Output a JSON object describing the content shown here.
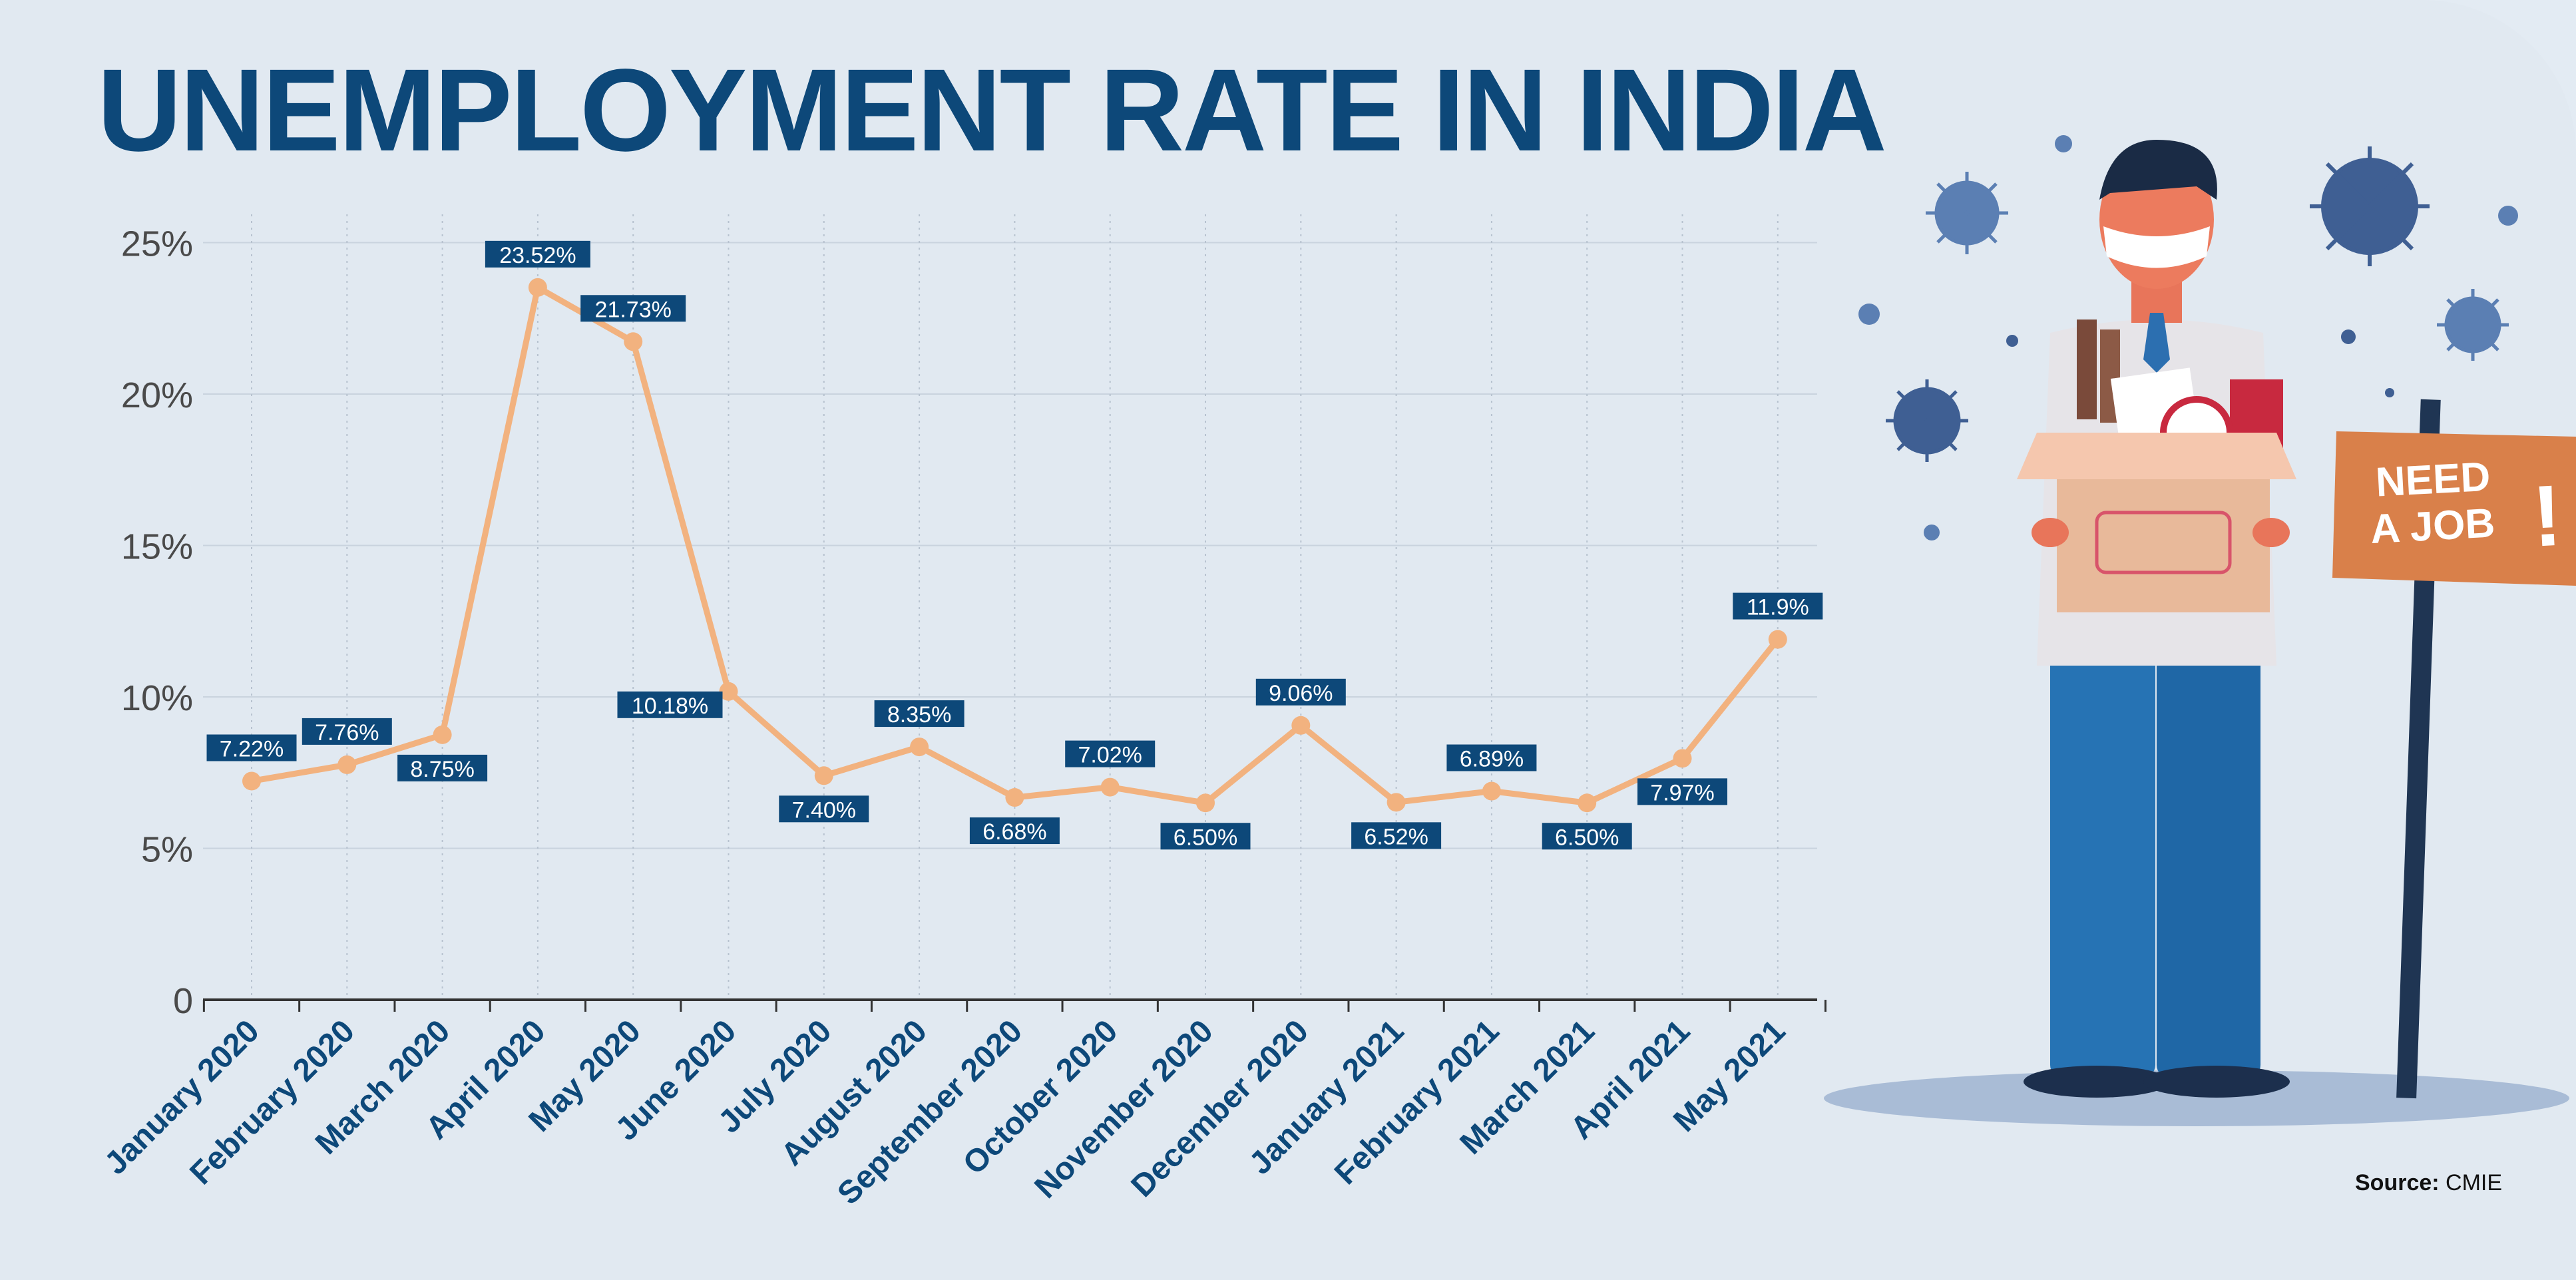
{
  "title": "UNEMPLOYMENT RATE IN INDIA",
  "source": {
    "label": "Source:",
    "value": "CMIE"
  },
  "sign": {
    "line1": "NEED",
    "line2": "A JOB",
    "mark": "!"
  },
  "colors": {
    "title": "#0d4879",
    "line": "#f2b27f",
    "label_bg": "#0d4879",
    "label_text": "#ffffff",
    "axis_text": "#4a4a4a",
    "category_text": "#0d4879",
    "sign": "#d9804a"
  },
  "chart_data": {
    "type": "line",
    "title": "UNEMPLOYMENT RATE IN INDIA",
    "xlabel": "",
    "ylabel": "",
    "ylim": [
      0,
      25
    ],
    "yticks": [
      "0",
      "5%",
      "10%",
      "15%",
      "20%",
      "25%"
    ],
    "grid": true,
    "categories": [
      "January 2020",
      "February 2020",
      "March 2020",
      "April 2020",
      "May 2020",
      "June 2020",
      "July 2020",
      "August 2020",
      "September 2020",
      "October 2020",
      "November 2020",
      "December 2020",
      "January 2021",
      "February 2021",
      "March 2021",
      "April 2021",
      "May 2021"
    ],
    "values": [
      7.22,
      7.76,
      8.75,
      23.52,
      21.73,
      10.18,
      7.4,
      8.35,
      6.68,
      7.02,
      6.5,
      9.06,
      6.52,
      6.89,
      6.5,
      7.97,
      11.9
    ],
    "labels": [
      "7.22%",
      "7.76%",
      "8.75%",
      "23.52%",
      "21.73%",
      "10.18%",
      "7.40%",
      "8.35%",
      "6.68%",
      "7.02%",
      "6.50%",
      "9.06%",
      "6.52%",
      "6.89%",
      "6.50%",
      "7.97%",
      "11.9%"
    ],
    "label_positions": [
      "above",
      "above",
      "below",
      "above",
      "above",
      "left",
      "below",
      "above",
      "below",
      "above",
      "below",
      "above",
      "below",
      "above",
      "below",
      "below",
      "above"
    ]
  }
}
